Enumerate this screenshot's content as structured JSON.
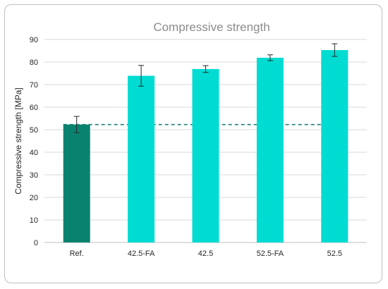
{
  "chart_data": {
    "type": "bar",
    "title": "Compressive strength",
    "xlabel": "",
    "ylabel": "Compressive strength [MPa]",
    "categories": [
      "Ref.",
      "42.5-FA",
      "42.5",
      "52.5-FA",
      "52.5"
    ],
    "values": [
      52.3,
      73.9,
      76.9,
      81.9,
      85.3
    ],
    "errors": [
      3.6,
      4.6,
      1.5,
      1.3,
      2.8
    ],
    "ylim": [
      0,
      90
    ],
    "yticks": [
      0,
      10,
      20,
      30,
      40,
      50,
      60,
      70,
      80,
      90
    ],
    "grid": true,
    "reference_line": {
      "value": 52.3,
      "style": "dashed",
      "color": "#1f7f74"
    },
    "colors": {
      "reference_bar": "#0a8270",
      "bars": "#00dcd2",
      "grid": "#d9d9d9",
      "error": "#262626"
    }
  }
}
